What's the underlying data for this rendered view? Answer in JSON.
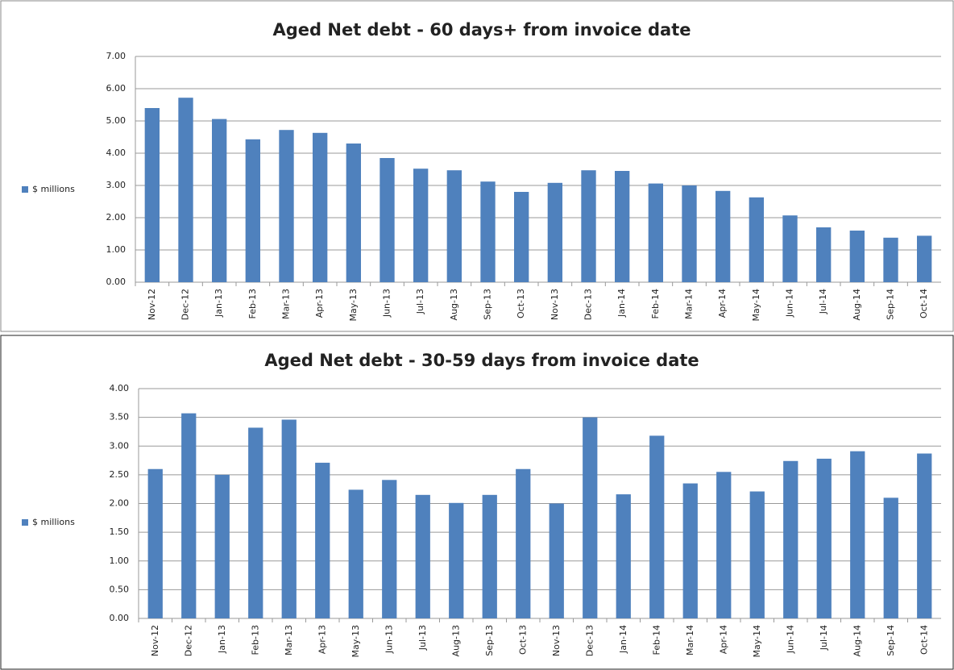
{
  "chart_data": [
    {
      "type": "bar",
      "title": "Aged Net debt - 60 days+ from invoice date",
      "legend": "$ millions",
      "color": "#4f81bd",
      "categories": [
        "Nov-12",
        "Dec-12",
        "Jan-13",
        "Feb-13",
        "Mar-13",
        "Apr-13",
        "May-13",
        "Jun-13",
        "Jul-13",
        "Aug-13",
        "Sep-13",
        "Oct-13",
        "Nov-13",
        "Dec-13",
        "Jan-14",
        "Feb-14",
        "Mar-14",
        "Apr-14",
        "May-14",
        "Jun-14",
        "Jul-14",
        "Aug-14",
        "Sep-14",
        "Oct-14"
      ],
      "values": [
        5.4,
        5.72,
        5.06,
        4.43,
        4.72,
        4.63,
        4.3,
        3.85,
        3.52,
        3.47,
        3.12,
        2.8,
        3.08,
        3.47,
        3.45,
        3.06,
        3.0,
        2.83,
        2.63,
        2.07,
        1.7,
        1.6,
        1.38,
        1.44
      ],
      "ylim": [
        0,
        7
      ],
      "yticks": [
        {
          "value": 0,
          "label": "0.00"
        },
        {
          "value": 1,
          "label": "1.00"
        },
        {
          "value": 2,
          "label": "2.00"
        },
        {
          "value": 3,
          "label": "3.00"
        },
        {
          "value": 4,
          "label": "4.00"
        },
        {
          "value": 5,
          "label": "5.00"
        },
        {
          "value": 6,
          "label": "6.00"
        },
        {
          "value": 7,
          "label": "7.00"
        }
      ],
      "grid": true
    },
    {
      "type": "bar",
      "title": "Aged Net debt - 30-59 days from invoice date",
      "legend": "$ millions",
      "color": "#4f81bd",
      "categories": [
        "Nov-12",
        "Dec-12",
        "Jan-13",
        "Feb-13",
        "Mar-13",
        "Apr-13",
        "May-13",
        "Jun-13",
        "Jul-13",
        "Aug-13",
        "Sep-13",
        "Oct-13",
        "Nov-13",
        "Dec-13",
        "Jan-14",
        "Feb-14",
        "Mar-14",
        "Apr-14",
        "May-14",
        "Jun-14",
        "Jul-14",
        "Aug-14",
        "Sep-14",
        "Oct-14"
      ],
      "values": [
        2.6,
        3.57,
        2.5,
        3.32,
        3.46,
        2.71,
        2.24,
        2.41,
        2.15,
        2.01,
        2.15,
        2.6,
        2.0,
        3.5,
        2.16,
        3.18,
        2.35,
        2.55,
        2.21,
        2.74,
        2.78,
        2.91,
        2.1,
        2.87
      ],
      "ylim": [
        0,
        4
      ],
      "yticks": [
        {
          "value": 0,
          "label": "0.00"
        },
        {
          "value": 0.5,
          "label": "0.50"
        },
        {
          "value": 1,
          "label": "1.00"
        },
        {
          "value": 1.5,
          "label": "1.50"
        },
        {
          "value": 2,
          "label": "2.00"
        },
        {
          "value": 2.5,
          "label": "2.50"
        },
        {
          "value": 3,
          "label": "3.00"
        },
        {
          "value": 3.5,
          "label": "3.50"
        },
        {
          "value": 4,
          "label": "4.00"
        }
      ],
      "grid": true
    }
  ]
}
